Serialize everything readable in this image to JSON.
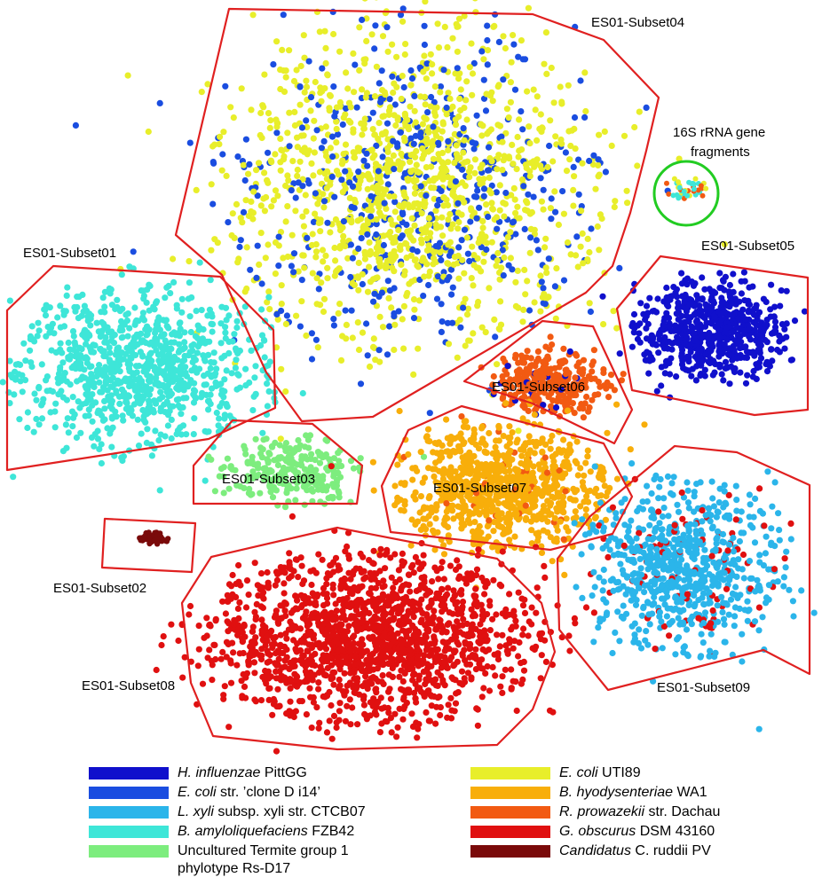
{
  "chart_data": {
    "type": "scatter",
    "xlabel": "",
    "ylabel": "",
    "grid": false,
    "legend_position": "bottom",
    "subsets": [
      {
        "name": "ES01-Subset01",
        "dominant_series": "B. amyloliquefaciens FZB42"
      },
      {
        "name": "ES01-Subset02",
        "dominant_series": "Candidatus C. ruddii PV"
      },
      {
        "name": "ES01-Subset03",
        "dominant_series": "Uncultured Termite group 1 phylotype Rs-D17"
      },
      {
        "name": "ES01-Subset04",
        "dominant_series": "E. coli UTI89 / E. coli str. 'clone D i14'"
      },
      {
        "name": "ES01-Subset05",
        "dominant_series": "H. influenzae PittGG"
      },
      {
        "name": "ES01-Subset06",
        "dominant_series": "R. prowazekii str. Dachau"
      },
      {
        "name": "ES01-Subset07",
        "dominant_series": "B. hyodysenteriae WA1"
      },
      {
        "name": "ES01-Subset08",
        "dominant_series": "G. obscurus DSM 43160"
      },
      {
        "name": "ES01-Subset09",
        "dominant_series": "L. xyli subsp. xyli str. CTCB07"
      }
    ],
    "annotation": {
      "text_line1": "16S rRNA gene",
      "text_line2": "fragments",
      "color": "#22cc22"
    },
    "series": [
      {
        "name": "H. influenzae PittGG",
        "italic": "H. influenzae",
        "rest": " PittGG",
        "color": "#1010cc"
      },
      {
        "name": "E. coli str. 'clone D i14'",
        "italic": "E. coli",
        "rest": " str. ’clone D i14’",
        "color": "#1a4de0"
      },
      {
        "name": "L. xyli subsp. xyli str. CTCB07",
        "italic": "L. xyli",
        "rest": " subsp. xyli str. CTCB07",
        "color": "#2bb5ea"
      },
      {
        "name": "B. amyloliquefaciens FZB42",
        "italic": "B. amyloliquefaciens",
        "rest": " FZB42",
        "color": "#3ee6d8"
      },
      {
        "name": "Uncultured Termite group 1 phylotype Rs-D17",
        "italic": "",
        "rest": "Uncultured Termite group 1",
        "rest2": "phylotype Rs-D17",
        "color": "#7ded7e"
      },
      {
        "name": "E. coli UTI89",
        "italic": "E. coli",
        "rest": " UTI89",
        "color": "#e8ee2a"
      },
      {
        "name": "B. hyodysenteriae WA1",
        "italic": "B. hyodysenteriae",
        "rest": " WA1",
        "color": "#f8ae0a"
      },
      {
        "name": "R. prowazekii str. Dachau",
        "italic": "R. prowazekii",
        "rest": " str. Dachau",
        "color": "#f25a12"
      },
      {
        "name": "G. obscurus DSM 43160",
        "italic": "G. obscurus",
        "rest": " DSM 43160",
        "color": "#e01010"
      },
      {
        "name": "Candidatus C. ruddii PV",
        "italic": "Candidatus",
        "rest": " C. ruddii PV",
        "color": "#7a0a0a"
      }
    ],
    "boundary_color": "#e02020"
  }
}
